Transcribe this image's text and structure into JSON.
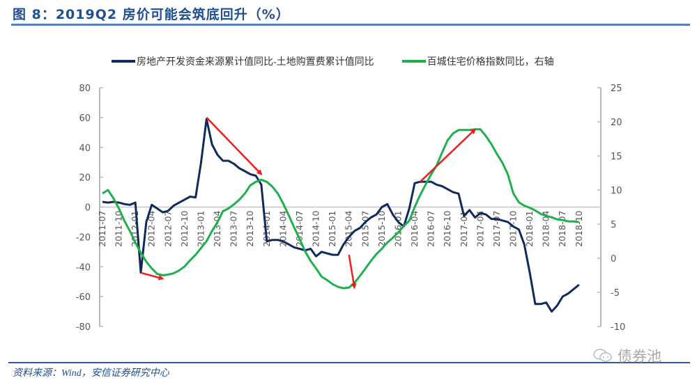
{
  "header": {
    "title": "图 8：2019Q2 房价可能会筑底回升（%）"
  },
  "footer": {
    "source": "资料来源：Wind，安信证券研究中心",
    "watermark": "债券池"
  },
  "legend": [
    {
      "label": "房地产开发资金来源累计值同比-土地购置费累计值同比",
      "color": "#102a5c"
    },
    {
      "label": "百城住宅价格指数同比，右轴",
      "color": "#1fb04c"
    }
  ],
  "chart_data": {
    "type": "line",
    "title": "2019Q2 房价可能会筑底回升（%）",
    "xlabel": "",
    "ylabel": "",
    "ylim_left": [
      -80,
      80
    ],
    "ylim_right": [
      -10,
      25
    ],
    "yticks_left": [
      80,
      60,
      40,
      20,
      0,
      -20,
      -40,
      -60,
      -80
    ],
    "yticks_right": [
      25,
      20,
      15,
      10,
      5,
      0,
      -5,
      -10
    ],
    "xtick_labels": [
      "2011-07",
      "2011-10",
      "2012-01",
      "2012-04",
      "2012-07",
      "2012-10",
      "2013-01",
      "2013-04",
      "2013-07",
      "2013-10",
      "2014-01",
      "2014-04",
      "2014-07",
      "2014-10",
      "2015-01",
      "2015-04",
      "2015-07",
      "2015-10",
      "2016-01",
      "2016-04",
      "2016-07",
      "2016-10",
      "2017-01",
      "2017-04",
      "2017-07",
      "2017-10",
      "2018-01",
      "2018-04",
      "2018-07",
      "2018-10"
    ],
    "x_start": "2011-07",
    "grid": false,
    "legend_position": "top",
    "series": [
      {
        "name": "房地产开发资金来源累计值同比-土地购置费累计值同比",
        "axis": "left",
        "color": "#102a5c",
        "values": [
          3.5,
          3,
          3.5,
          3,
          2,
          1.5,
          3,
          -44,
          -10,
          1.5,
          -1,
          -3.5,
          -2.5,
          1,
          3,
          5,
          7,
          6.5,
          30,
          59,
          42,
          35,
          31,
          31,
          29,
          26,
          24,
          22,
          21,
          15,
          -23,
          -22,
          -22,
          -23,
          -25,
          -27,
          -28,
          -29,
          -28,
          -33,
          -30,
          -31,
          -32,
          -32,
          -25,
          -20,
          -16,
          -14,
          -10,
          -7,
          -5,
          0,
          2,
          -5,
          -10,
          -13,
          -1,
          16,
          17,
          17,
          17,
          15,
          14,
          12,
          10,
          9,
          -6,
          -2,
          -7,
          -4,
          -5,
          -8,
          -8,
          -9,
          -10,
          -13,
          -15,
          -25,
          -44,
          -65,
          -65,
          -64,
          -70,
          -66,
          -60,
          -58,
          -55,
          -52
        ]
      },
      {
        "name": "百城住宅价格指数同比，右轴",
        "axis": "right",
        "color": "#1fb04c",
        "values": [
          9.5,
          10,
          8.8,
          7.3,
          5.5,
          4,
          2.3,
          0.8,
          -0.5,
          -1.5,
          -2.3,
          -2.5,
          -2.4,
          -2.2,
          -1.8,
          -1.2,
          -0.3,
          0.5,
          1.5,
          2.5,
          4,
          5.3,
          6.9,
          7.3,
          7.9,
          8.6,
          9.5,
          10.7,
          11.2,
          11.5,
          11.2,
          10.5,
          9.5,
          8,
          6.3,
          4.5,
          2.8,
          1,
          -0.4,
          -1.5,
          -2.7,
          -3.2,
          -3.8,
          -4.2,
          -4.4,
          -4.3,
          -3.6,
          -2.6,
          -1.5,
          -0.4,
          0.6,
          1.4,
          2.3,
          3,
          3.8,
          4.7,
          5.5,
          7.5,
          9.3,
          10.8,
          12.3,
          13.6,
          15.5,
          17.3,
          18.3,
          18.8,
          18.8,
          18.8,
          18.9,
          18.9,
          17.9,
          16.7,
          15.3,
          14,
          12.3,
          9.5,
          8.2,
          7.7,
          7.4,
          7,
          6.5,
          6.2,
          6,
          5.7,
          5.6,
          5.4,
          5.4,
          5.3
        ]
      }
    ],
    "annotations": [
      {
        "type": "arrow",
        "color": "#ee1c1c",
        "from": {
          "x_index": 7,
          "y_left": -44
        },
        "to": {
          "x_index": 11,
          "y_left": -48
        }
      },
      {
        "type": "arrow",
        "color": "#ee1c1c",
        "from": {
          "x_index": 19,
          "y_left": 60
        },
        "to": {
          "x_index": 29,
          "y_left": 22
        }
      },
      {
        "type": "arrow",
        "color": "#ee1c1c",
        "from": {
          "x_index": 45,
          "y_left": -32
        },
        "to": {
          "x_index": 46,
          "y_left": -54
        }
      },
      {
        "type": "arrow",
        "color": "#ee1c1c",
        "from": {
          "x_index": 58,
          "y_left": 17
        },
        "to": {
          "x_index": 68,
          "y_left": 52
        }
      }
    ]
  }
}
